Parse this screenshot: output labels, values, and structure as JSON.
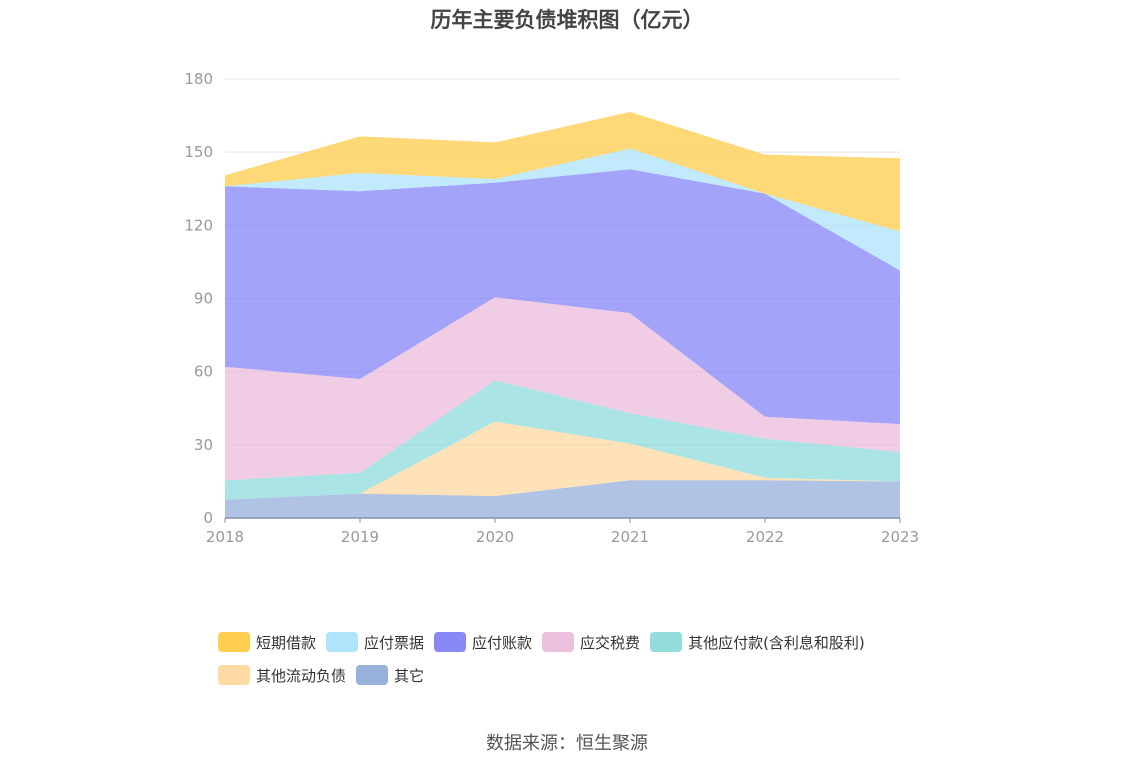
{
  "chart_data": {
    "type": "area",
    "stacked": true,
    "title": "历年主要负债堆积图（亿元）",
    "x": [
      "2018",
      "2019",
      "2020",
      "2021",
      "2022",
      "2023"
    ],
    "ylim": [
      0,
      180
    ],
    "yticks": [
      "0",
      "30",
      "60",
      "90",
      "120",
      "150",
      "180"
    ],
    "grid": true,
    "legend_position": "bottom",
    "series": [
      {
        "name": "其它",
        "color": "#8eaad8",
        "values": [
          7.5,
          10,
          9,
          15.5,
          15.5,
          15
        ]
      },
      {
        "name": "其他流动负债",
        "color": "#ffd699",
        "values": [
          0,
          0,
          30.5,
          15,
          1,
          0
        ]
      },
      {
        "name": "其他应付款(含利息和股利)",
        "color": "#88d8d8",
        "values": [
          8,
          8.5,
          17,
          12.5,
          16,
          12
        ]
      },
      {
        "name": "应交税费",
        "color": "#eab8da",
        "values": [
          46.5,
          38.5,
          34,
          41,
          9,
          11.5
        ]
      },
      {
        "name": "应付账款",
        "color": "#7b7cf6",
        "values": [
          74,
          77,
          47,
          59,
          91.5,
          63
        ]
      },
      {
        "name": "应付票据",
        "color": "#a6e1fb",
        "values": [
          0,
          7.5,
          1.5,
          8.5,
          0,
          16
        ]
      },
      {
        "name": "短期借款",
        "color": "#ffc83d",
        "values": [
          4.5,
          15,
          15,
          15,
          16,
          30
        ]
      }
    ],
    "legend_order": [
      "短期借款",
      "应付票据",
      "应付账款",
      "应交税费",
      "其他应付款(含利息和股利)",
      "其他流动负债",
      "其它"
    ]
  },
  "source_text": "数据来源：恒生聚源"
}
